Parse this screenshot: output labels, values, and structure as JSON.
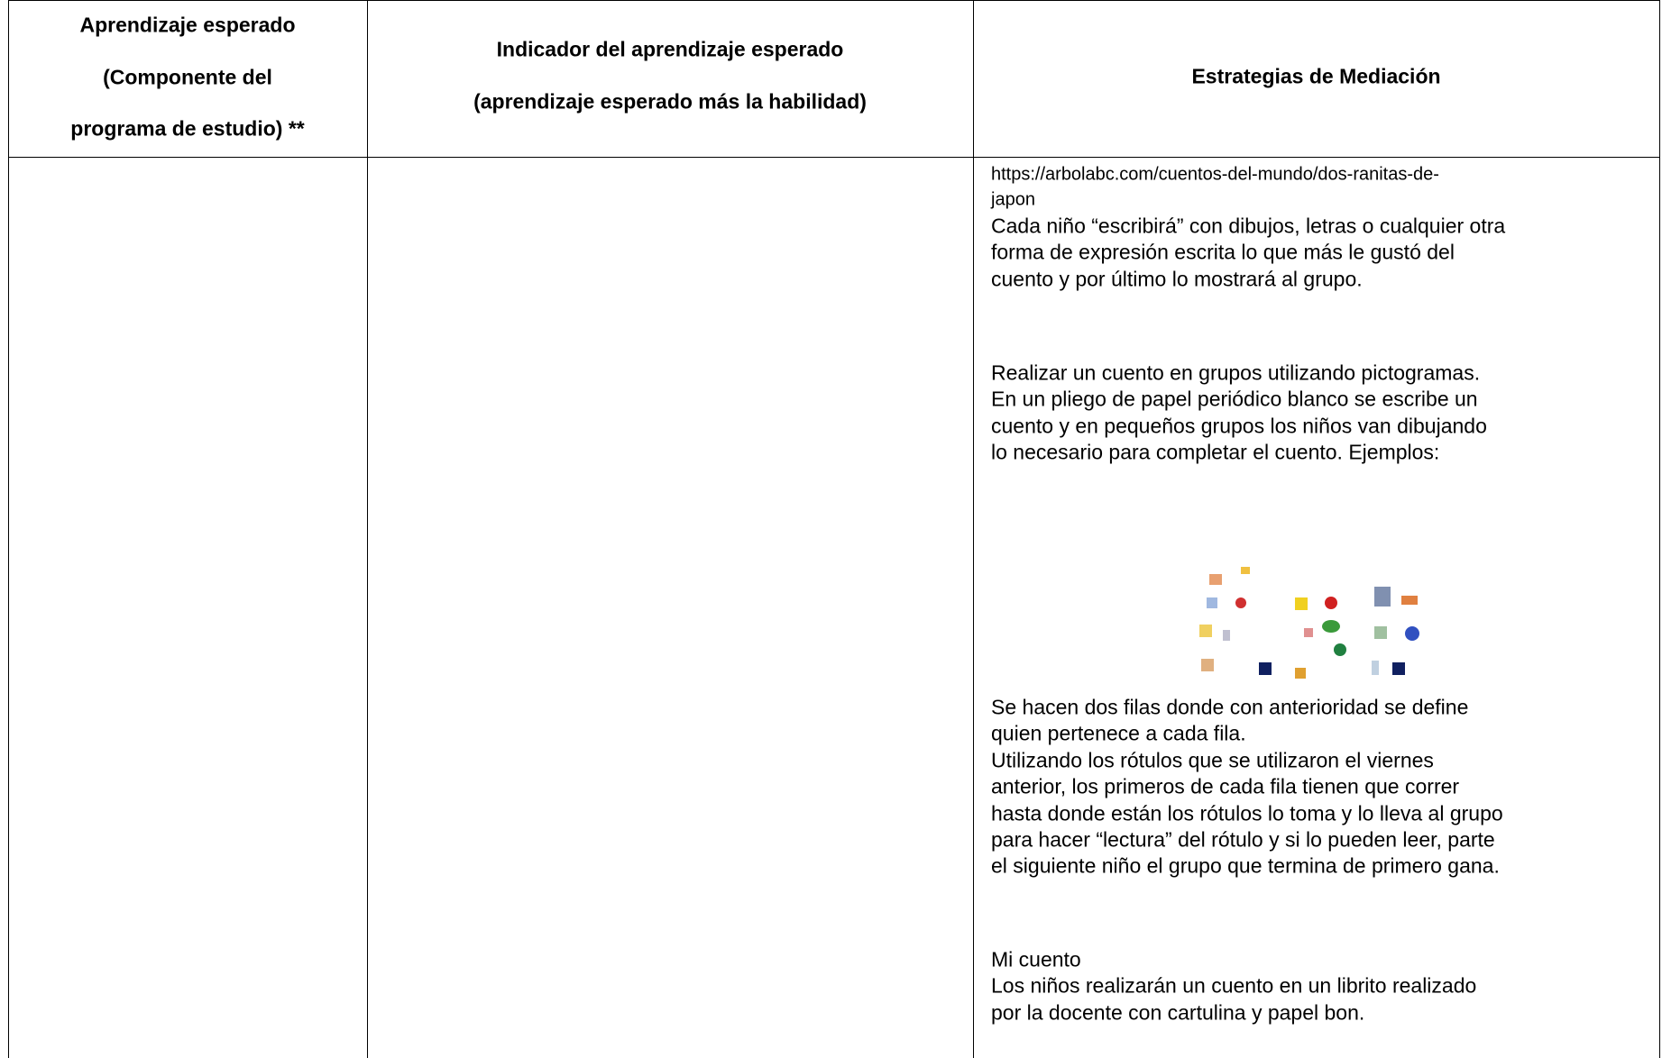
{
  "table": {
    "header": [
      [
        "Aprendizaje esperado",
        "(Componente del",
        "programa de estudio) **"
      ],
      [
        "Indicador del aprendizaje esperado",
        "(aprendizaje esperado más la habilidad)"
      ],
      [
        "Estrategias de Mediación"
      ]
    ],
    "mediation": [
      [
        "https://arbolabc.com/cuentos-del-mundo/dos-ranitas-de-",
        "japon"
      ],
      [
        "Cada niño “escribirá” con dibujos, letras o cualquier otra",
        "forma de expresión escrita lo que más le gustó del",
        "cuento y por último lo mostrará al grupo."
      ],
      [
        "Realizar un cuento en grupos utilizando pictogramas.",
        "En un pliego de papel periódico blanco se escribe un",
        "cuento y en pequeños grupos los niños van dibujando",
        "lo necesario para completar el cuento. Ejemplos:"
      ],
      [
        "Se hacen dos filas donde con anterioridad se define",
        "quien pertenece a cada fila.",
        "Utilizando los rótulos que se utilizaron el viernes",
        "anterior, los primeros de cada fila tienen que correr",
        "hasta donde están los rótulos lo toma y lo lleva al grupo",
        "para hacer “lectura” del rótulo y si lo pueden leer, parte",
        "el siguiente niño el grupo que termina de primero gana."
      ],
      [
        "Mi cuento",
        "Los niños realizarán un cuento en un librito realizado",
        "por la docente con cartulina y papel bon."
      ]
    ]
  }
}
